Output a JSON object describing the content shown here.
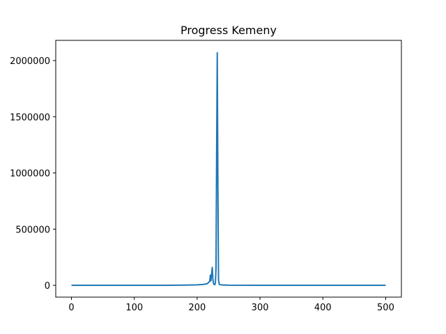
{
  "chart_data": {
    "type": "line",
    "title": "Progress Kemeny",
    "xlabel": "",
    "ylabel": "",
    "xlim": [
      -25,
      525
    ],
    "ylim": [
      -105000,
      2180000
    ],
    "x_ticks": [
      0,
      100,
      200,
      300,
      400,
      500
    ],
    "y_ticks": [
      0,
      500000,
      1000000,
      1500000,
      2000000
    ],
    "x_tick_labels": [
      "0",
      "100",
      "200",
      "300",
      "400",
      "500"
    ],
    "y_tick_labels": [
      "0",
      "500000",
      "1000000",
      "1500000",
      "2000000"
    ],
    "grid": false,
    "legend": "none",
    "series": [
      {
        "color": "#1f77b4",
        "x": [
          0,
          50,
          100,
          150,
          180,
          200,
          210,
          216,
          218,
          219,
          220,
          221,
          222,
          223,
          224,
          225,
          226,
          227,
          228,
          229,
          230,
          231,
          232,
          233,
          234,
          235,
          236,
          240,
          250,
          300,
          350,
          400,
          450,
          500
        ],
        "y": [
          0,
          0,
          0,
          500,
          1500,
          4000,
          8000,
          14000,
          25000,
          30000,
          35000,
          90000,
          40000,
          100000,
          160000,
          60000,
          15000,
          8000,
          5000,
          20000,
          150000,
          1200000,
          2070000,
          900000,
          50000,
          12000,
          6000,
          3000,
          1000,
          500,
          200,
          0,
          0,
          0
        ]
      }
    ]
  }
}
